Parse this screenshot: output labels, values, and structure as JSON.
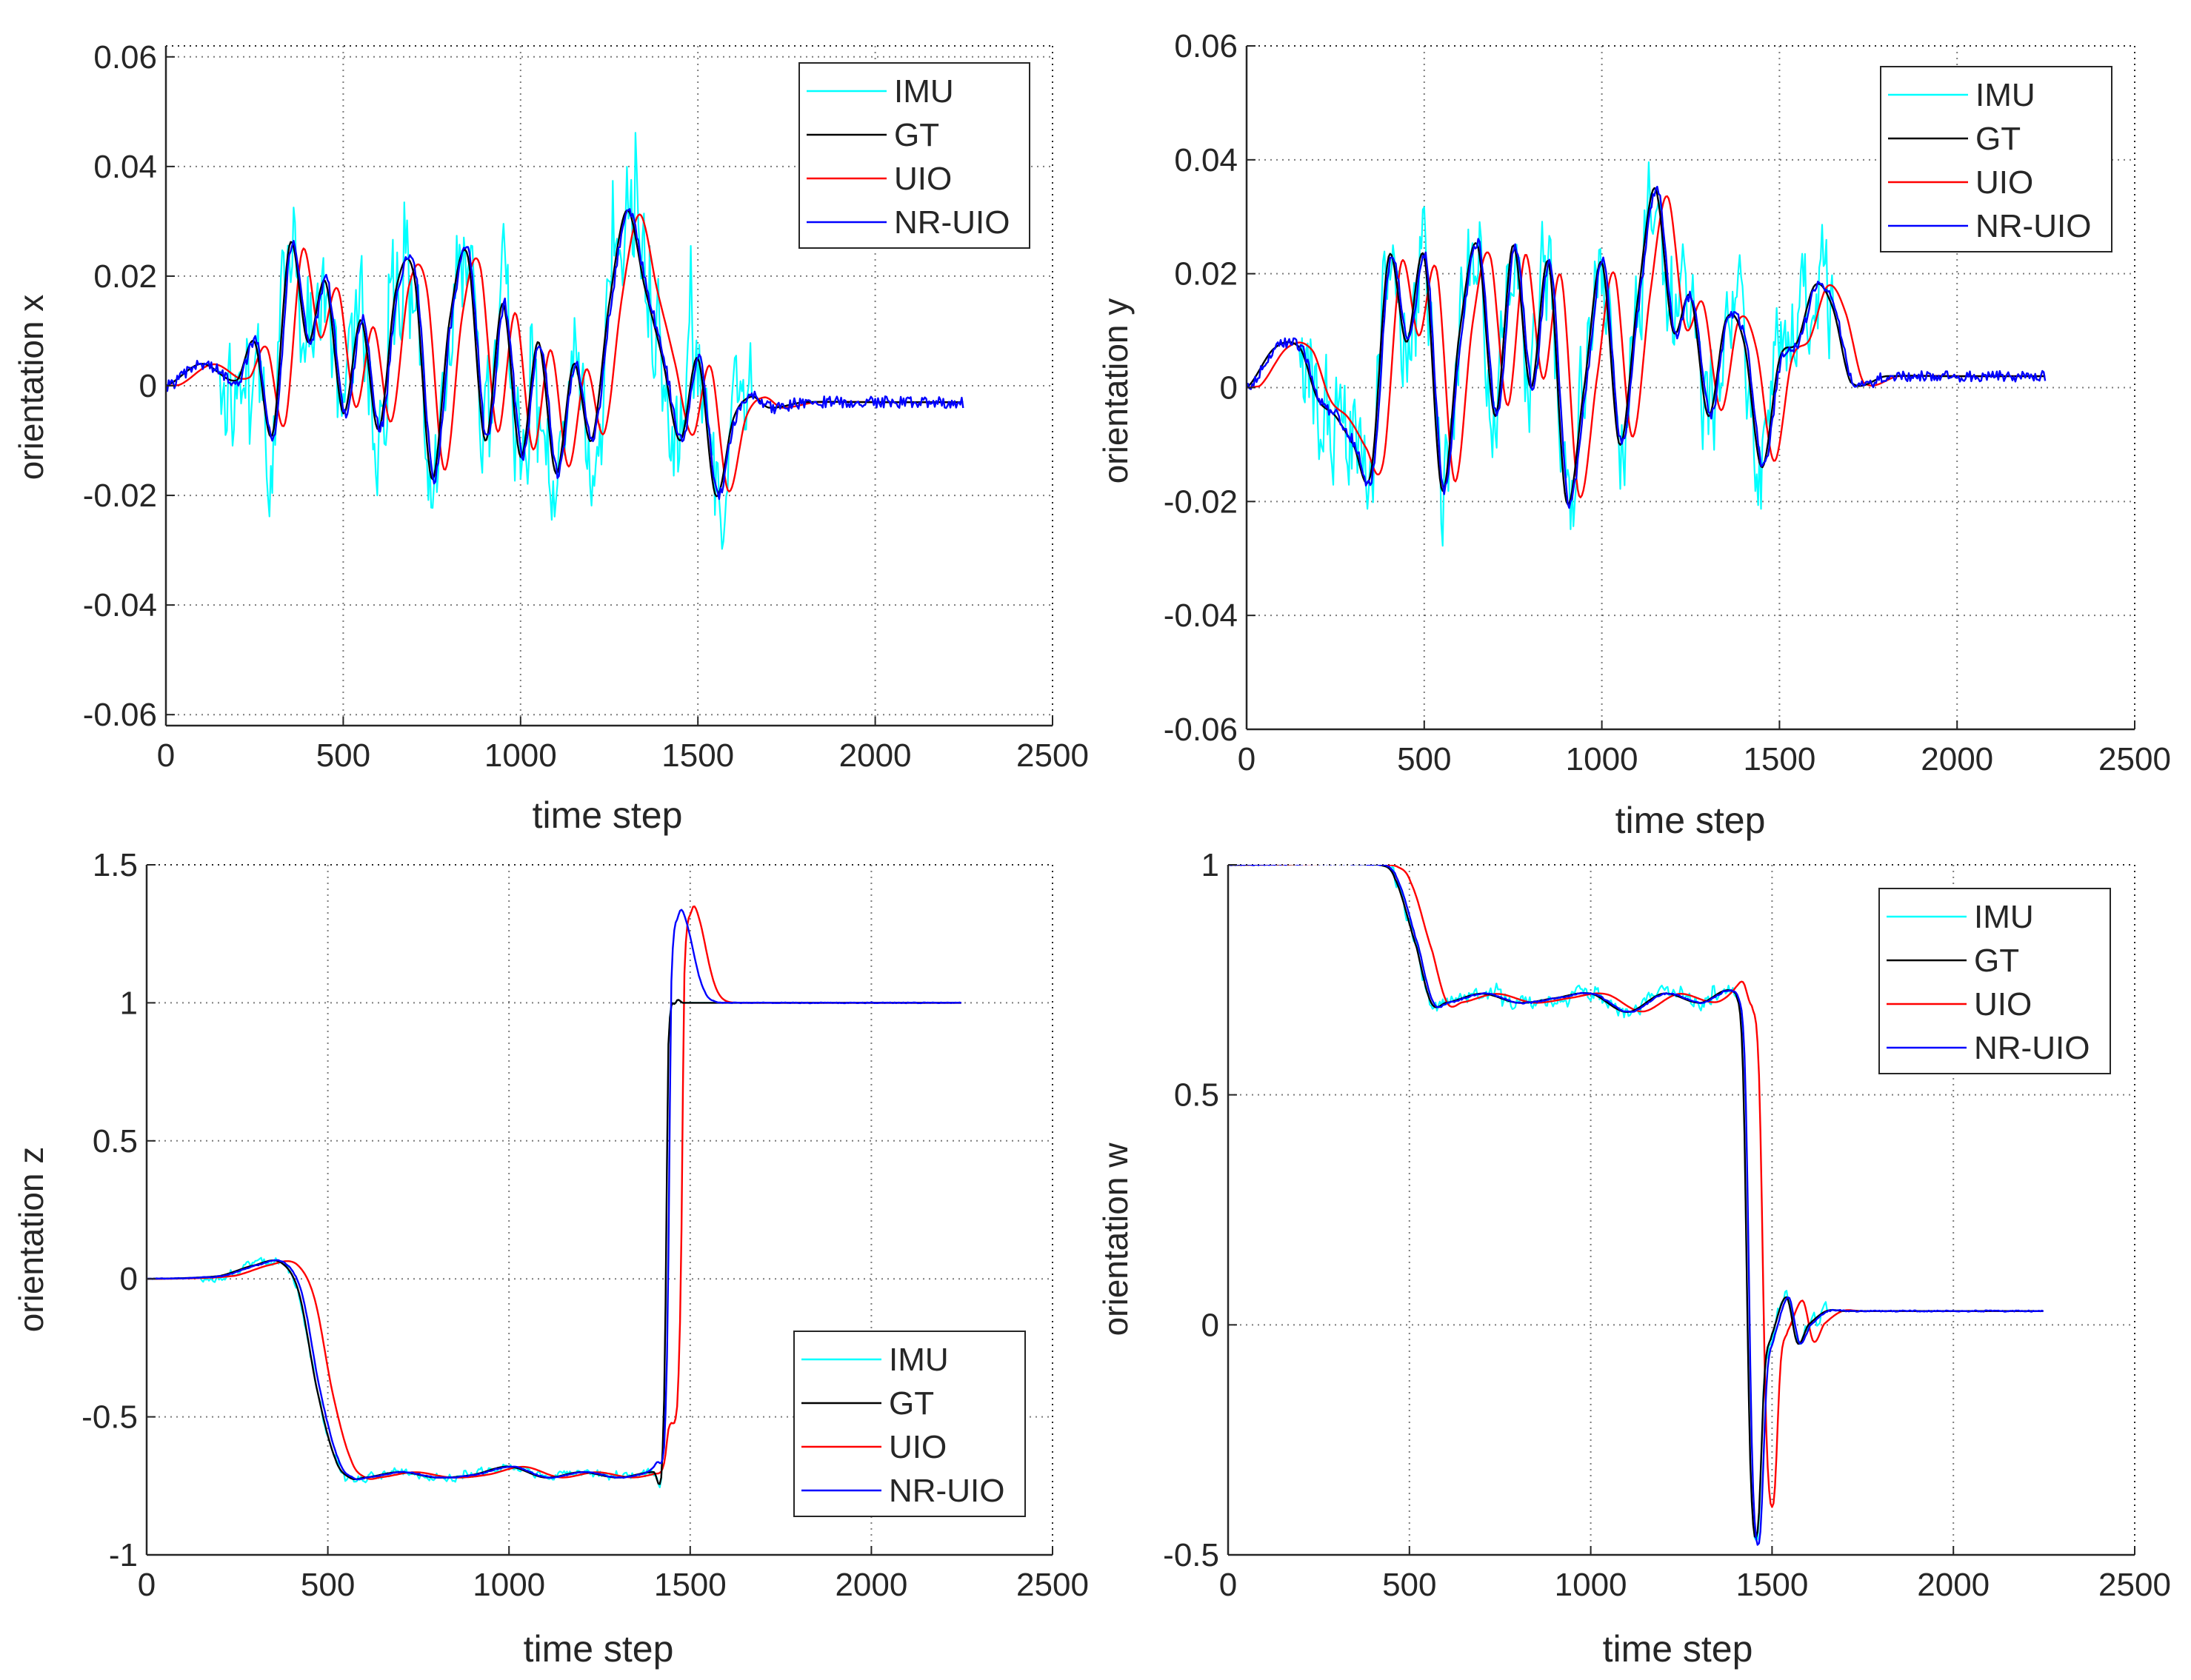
{
  "chart_data": [
    {
      "type": "line",
      "panel": "top-left",
      "xlabel": "time step",
      "ylabel": "orientation x",
      "xlim": [
        0,
        2500
      ],
      "ylim": [
        -0.062,
        0.062
      ],
      "xticks": [
        0,
        500,
        1000,
        1500,
        2000,
        2500
      ],
      "yticks": [
        -0.06,
        -0.04,
        -0.02,
        0,
        0.02,
        0.04,
        0.06
      ],
      "ytick_labels": [
        "-0.06",
        "-0.04",
        "-0.02",
        "0",
        "0.02",
        "0.04",
        "0.06"
      ],
      "grid": true,
      "legend_position": "top-right",
      "legend": [
        "IMU",
        "GT",
        "UIO",
        "NR-UIO"
      ],
      "colors": {
        "IMU": "#00ffff",
        "GT": "#000000",
        "UIO": "#ff0000",
        "NR-UIO": "#0000ff"
      },
      "gt_keypoints": {
        "x": [
          0,
          100,
          200,
          250,
          300,
          350,
          400,
          450,
          500,
          550,
          600,
          650,
          700,
          750,
          800,
          850,
          900,
          950,
          1000,
          1050,
          1100,
          1150,
          1200,
          1250,
          1300,
          1350,
          1400,
          1450,
          1500,
          1550,
          1600,
          1650,
          1700,
          1800,
          2000,
          2250
        ],
        "y": [
          0,
          0.004,
          0.001,
          0.008,
          -0.009,
          0.026,
          0.008,
          0.019,
          -0.005,
          0.012,
          -0.008,
          0.018,
          0.02,
          -0.017,
          0.012,
          0.024,
          -0.01,
          0.015,
          -0.013,
          0.008,
          -0.016,
          0.004,
          -0.01,
          0.015,
          0.032,
          0.018,
          0.005,
          -0.01,
          0.005,
          -0.02,
          -0.006,
          -0.002,
          -0.004,
          -0.003,
          -0.003,
          -0.003
        ]
      },
      "imu_noise_amplitude": 0.018,
      "imu_active_range": [
        150,
        1650
      ],
      "uio_lag_steps": 18,
      "nruio_lag_steps": 5
    },
    {
      "type": "line",
      "panel": "top-right",
      "xlabel": "time step",
      "ylabel": "orientation y",
      "xlim": [
        0,
        2500
      ],
      "ylim": [
        -0.06,
        0.06
      ],
      "xticks": [
        0,
        500,
        1000,
        1500,
        2000,
        2500
      ],
      "yticks": [
        -0.06,
        -0.04,
        -0.02,
        0,
        0.02,
        0.04,
        0.06
      ],
      "ytick_labels": [
        "-0.06",
        "-0.04",
        "-0.02",
        "0",
        "0.02",
        "0.04",
        "0.06"
      ],
      "grid": true,
      "legend_position": "top-right",
      "legend": [
        "IMU",
        "GT",
        "UIO",
        "NR-UIO"
      ],
      "colors": {
        "IMU": "#00ffff",
        "GT": "#000000",
        "UIO": "#ff0000",
        "NR-UIO": "#0000ff"
      },
      "gt_keypoints": {
        "x": [
          0,
          80,
          150,
          200,
          250,
          300,
          350,
          400,
          450,
          500,
          550,
          600,
          650,
          700,
          750,
          800,
          850,
          900,
          950,
          1000,
          1050,
          1100,
          1150,
          1200,
          1250,
          1300,
          1350,
          1400,
          1450,
          1500,
          1550,
          1600,
          1650,
          1700,
          1800,
          2000,
          2250
        ],
        "y": [
          0,
          0.007,
          0.007,
          -0.002,
          -0.005,
          -0.01,
          -0.015,
          0.023,
          0.008,
          0.023,
          -0.018,
          0.01,
          0.025,
          -0.005,
          0.025,
          0,
          0.022,
          -0.02,
          0,
          0.022,
          -0.01,
          0.015,
          0.035,
          0.01,
          0.016,
          -0.005,
          0.012,
          0.008,
          -0.014,
          0.005,
          0.008,
          0.018,
          0.014,
          0.001,
          0.002,
          0.002,
          0.002
        ]
      },
      "imu_noise_amplitude": 0.016,
      "imu_active_range": [
        150,
        1650
      ],
      "uio_lag_steps": 18,
      "nruio_lag_steps": 5
    },
    {
      "type": "line",
      "panel": "bottom-left",
      "xlabel": "time step",
      "ylabel": "orientation z",
      "xlim": [
        0,
        2500
      ],
      "ylim": [
        -1,
        1.5
      ],
      "xticks": [
        0,
        500,
        1000,
        1500,
        2000,
        2500
      ],
      "yticks": [
        -1,
        -0.5,
        0,
        0.5,
        1,
        1.5
      ],
      "ytick_labels": [
        "-1",
        "-0.5",
        "0",
        "0.5",
        "1",
        "1.5"
      ],
      "grid": true,
      "legend_position": "bottom-right",
      "legend": [
        "IMU",
        "GT",
        "UIO",
        "NR-UIO"
      ],
      "colors": {
        "IMU": "#00ffff",
        "GT": "#000000",
        "UIO": "#ff0000",
        "NR-UIO": "#0000ff"
      },
      "gt_keypoints": {
        "x": [
          0,
          200,
          300,
          370,
          420,
          470,
          520,
          560,
          600,
          700,
          800,
          900,
          1000,
          1100,
          1200,
          1300,
          1400,
          1420,
          1430,
          1440,
          1460,
          1480,
          1550,
          1700,
          2000,
          2250
        ],
        "y": [
          0,
          0.01,
          0.05,
          0.06,
          -0.05,
          -0.4,
          -0.65,
          -0.72,
          -0.72,
          -0.7,
          -0.72,
          -0.71,
          -0.68,
          -0.72,
          -0.7,
          -0.72,
          -0.7,
          -0.72,
          -0.3,
          0.85,
          1.0,
          1.0,
          1.0,
          1.0,
          1.0,
          1.0
        ]
      },
      "overshoot": {
        "UIO": {
          "peak_x": 1510,
          "peak_y": 1.34
        },
        "NR-UIO": {
          "peak_x": 1475,
          "peak_y": 1.33
        }
      },
      "imu_noise_amplitude": 0.025,
      "imu_active_range": [
        150,
        1450
      ],
      "uio_lag_steps": 22,
      "nruio_lag_steps": 8
    },
    {
      "type": "line",
      "panel": "bottom-right",
      "xlabel": "time step",
      "ylabel": "orientation w",
      "xlim": [
        0,
        2500
      ],
      "ylim": [
        -0.5,
        1
      ],
      "xticks": [
        0,
        500,
        1000,
        1500,
        2000,
        2500
      ],
      "yticks": [
        -0.5,
        0,
        0.5,
        1
      ],
      "ytick_labels": [
        "-0.5",
        "0",
        "0.5",
        "1"
      ],
      "grid": true,
      "legend_position": "top-right",
      "legend": [
        "IMU",
        "GT",
        "UIO",
        "NR-UIO"
      ],
      "colors": {
        "IMU": "#00ffff",
        "GT": "#000000",
        "UIO": "#ff0000",
        "NR-UIO": "#0000ff"
      },
      "gt_keypoints": {
        "x": [
          0,
          420,
          460,
          520,
          560,
          600,
          700,
          800,
          900,
          1000,
          1100,
          1200,
          1300,
          1400,
          1420,
          1440,
          1460,
          1480,
          1500,
          1540,
          1570,
          1600,
          1650,
          1700,
          2000,
          2250
        ],
        "y": [
          1.0,
          1.0,
          0.97,
          0.82,
          0.7,
          0.7,
          0.72,
          0.7,
          0.71,
          0.72,
          0.68,
          0.72,
          0.7,
          0.72,
          0.55,
          -0.3,
          -0.45,
          -0.1,
          -0.02,
          0.06,
          -0.04,
          0.0,
          0.03,
          0.03,
          0.03,
          0.03
        ]
      },
      "overshoot": {
        "UIO": {
          "peak_x": 1460,
          "peak_y": -0.38
        },
        "NR-UIO": {
          "peak_x": 1462,
          "peak_y": -0.45
        }
      },
      "imu_noise_amplitude": 0.025,
      "imu_active_range": [
        450,
        1650
      ],
      "uio_lag_steps": 22,
      "nruio_lag_steps": 6
    }
  ]
}
